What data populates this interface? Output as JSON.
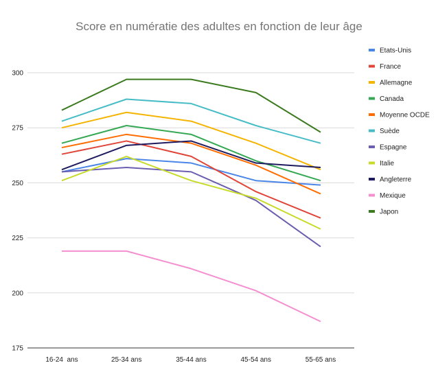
{
  "chart_data": {
    "type": "line",
    "title": "Score en numératie des adultes en fonction de leur âge",
    "xlabel": "",
    "ylabel": "",
    "categories": [
      "16-24  ans",
      "25-34 ans",
      "35-44 ans",
      "45-54 ans",
      "55-65 ans"
    ],
    "ylim": [
      175,
      300
    ],
    "yticks": [
      175,
      200,
      225,
      250,
      275,
      300
    ],
    "ytick_labels": [
      "175",
      "200",
      "225",
      "250",
      "275",
      "300"
    ],
    "grid": true,
    "legend_position": "right",
    "series": [
      {
        "name": "Etats-Unis",
        "color": "#4a86e8",
        "values": [
          255,
          261,
          259,
          251,
          249
        ]
      },
      {
        "name": "France",
        "color": "#e0453a",
        "values": [
          263,
          269,
          262,
          246,
          234
        ]
      },
      {
        "name": "Allemagne",
        "color": "#f4b400",
        "values": [
          275,
          282,
          278,
          268,
          256
        ]
      },
      {
        "name": "Canada",
        "color": "#34a853",
        "values": [
          268,
          276,
          272,
          260,
          251
        ]
      },
      {
        "name": "Moyenne OCDE",
        "color": "#ff6d01",
        "values": [
          266,
          272,
          268,
          258,
          245
        ]
      },
      {
        "name": "Suède",
        "color": "#46bdc6",
        "values": [
          278,
          288,
          286,
          276,
          268
        ]
      },
      {
        "name": "Espagne",
        "color": "#6c5db0",
        "values": [
          255,
          257,
          255,
          242,
          221
        ]
      },
      {
        "name": "Italie",
        "color": "#c8da2b",
        "values": [
          251,
          262,
          251,
          243,
          229
        ]
      },
      {
        "name": "Angleterre",
        "color": "#1e1b5e",
        "values": [
          256,
          267,
          269,
          259,
          257
        ]
      },
      {
        "name": "Mexique",
        "color": "#f48fd0",
        "values": [
          219,
          219,
          211,
          201,
          187
        ]
      },
      {
        "name": "Japon",
        "color": "#3b7a1e",
        "values": [
          283,
          297,
          297,
          291,
          273
        ]
      }
    ]
  }
}
